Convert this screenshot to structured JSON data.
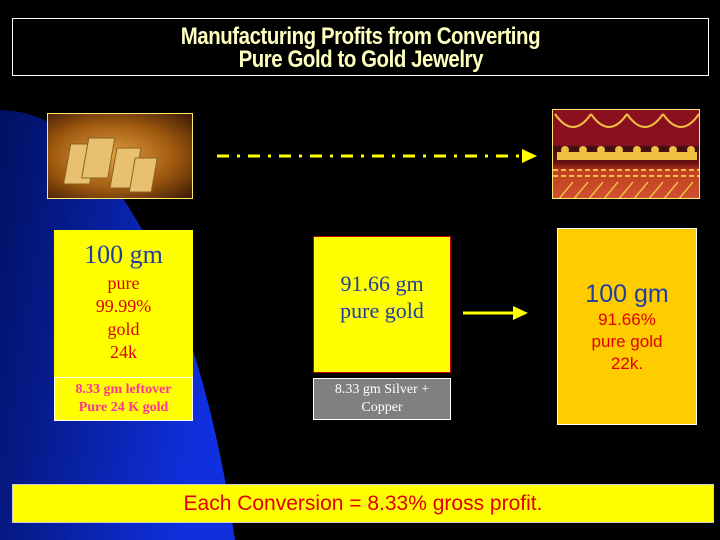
{
  "title": {
    "line1": "Manufacturing Profits from Converting",
    "line2": "Pure Gold to Gold Jewelry"
  },
  "images": {
    "left": "gold-bars",
    "right": "gold-jewelry-display"
  },
  "box_pure": {
    "amount": "100 gm",
    "line1": "pure",
    "line2": "99.99%",
    "line3": "gold",
    "line4": "24k"
  },
  "leftover": {
    "line1": "8.33 gm leftover",
    "line2": "Pure 24 K gold"
  },
  "box_mid": {
    "line1": "91.66 gm",
    "line2": "pure gold"
  },
  "alloy": {
    "line1": "8.33 gm Silver +",
    "line2": "Copper"
  },
  "box_jewelry": {
    "amount": "100 gm",
    "line1": "91.66%",
    "line2": "pure gold",
    "line3": "22k."
  },
  "banner": "Each Conversion = 8.33% gross profit.",
  "colors": {
    "yellow": "#ffff00",
    "gold": "#ffcc00",
    "blue_text": "#1f3fa0",
    "red_text": "#e00000",
    "pink_text": "#ff3399"
  }
}
